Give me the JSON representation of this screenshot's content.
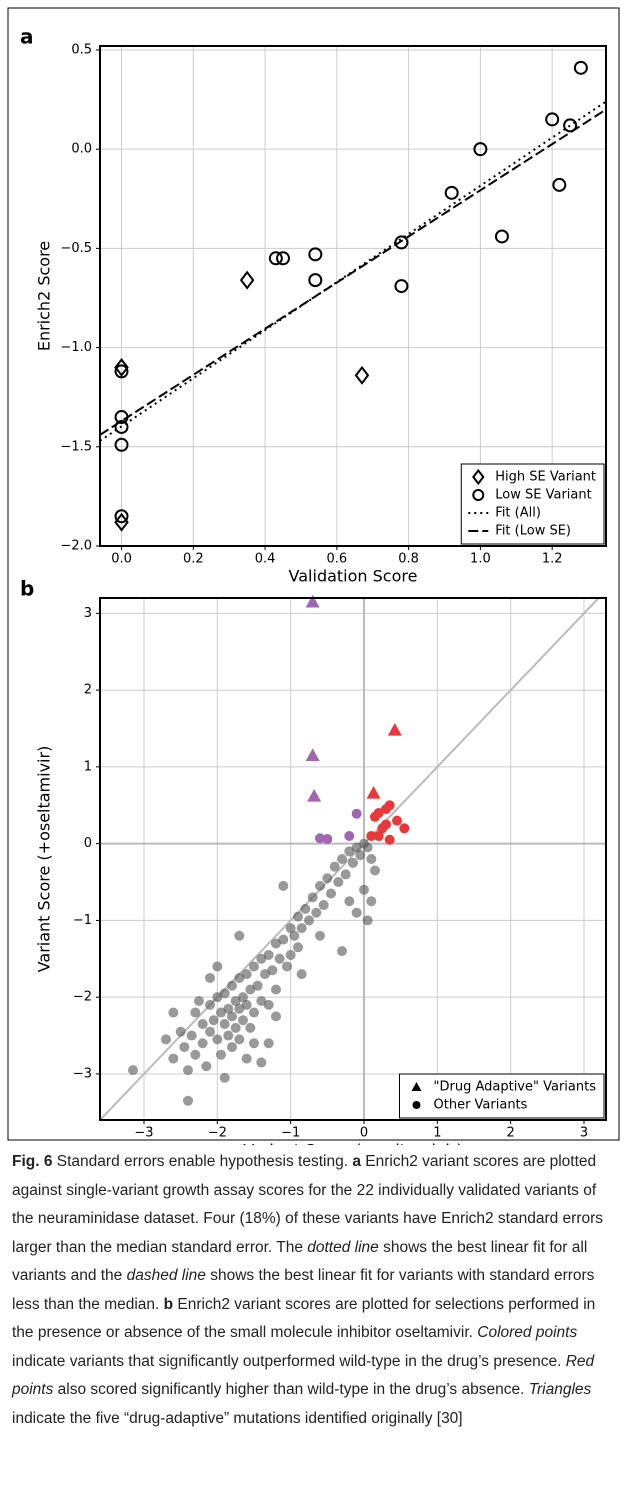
{
  "chart_data": [
    {
      "type": "scatter",
      "panel_label": "a",
      "x_label": "Validation Score",
      "y_label": "Enrich2 Score",
      "xlim": [
        -0.06,
        1.35
      ],
      "ylim": [
        -2.0,
        0.52
      ],
      "xticks": [
        {
          "value": 0,
          "label": "0.0"
        },
        0.2,
        0.4,
        0.6,
        0.8,
        {
          "value": 1,
          "label": "1.0"
        },
        1.2
      ],
      "yticks": [
        0.5,
        {
          "value": 0,
          "label": "0.0"
        },
        {
          "value": -0.5,
          "label": "−0.5"
        },
        {
          "value": -1,
          "label": "−1.0"
        },
        {
          "value": -1.5,
          "label": "−1.5"
        },
        {
          "value": -2,
          "label": "−2.0"
        }
      ],
      "grid": true,
      "legend": "lower right",
      "series": [
        {
          "name": "High SE Variant",
          "marker": "diamond",
          "color": "#000",
          "filled": false,
          "x": [
            0,
            0.35,
            0.67,
            0
          ],
          "values": [
            -1.1,
            -0.66,
            -1.14,
            -1.88
          ]
        },
        {
          "name": "Low SE Variant",
          "marker": "circle",
          "color": "#000",
          "filled": false,
          "x": [
            0,
            0,
            0,
            0,
            0,
            0.43,
            0.45,
            0.54,
            0.54,
            0.78,
            0.78,
            0.92,
            1.0,
            1.06,
            1.2,
            1.22,
            1.25,
            1.28
          ],
          "values": [
            -1.12,
            -1.35,
            -1.4,
            -1.49,
            -1.85,
            -0.55,
            -0.55,
            -0.53,
            -0.66,
            -0.47,
            -0.69,
            -0.22,
            0.0,
            -0.44,
            0.15,
            -0.18,
            0.12,
            0.41
          ]
        }
      ],
      "lines": [
        {
          "name": "Fit (All)",
          "dash": "2 4",
          "color": "#000",
          "x": [
            -0.06,
            1.35
          ],
          "values": [
            -1.47,
            0.24
          ]
        },
        {
          "name": "Fit (Low SE)",
          "dash": "10 4",
          "color": "#000",
          "x": [
            -0.06,
            1.35
          ],
          "values": [
            -1.44,
            0.2
          ]
        }
      ]
    },
    {
      "type": "scatter",
      "panel_label": "b",
      "x_label": "Variant Score (-oseltamivir)",
      "y_label": "Variant Score (+oseltamivir)",
      "xlim": [
        -3.6,
        3.3
      ],
      "ylim": [
        -3.6,
        3.2
      ],
      "xticks": [
        {
          "value": -3,
          "label": "−3"
        },
        {
          "value": -2,
          "label": "−2"
        },
        {
          "value": -1,
          "label": "−1"
        },
        0,
        1,
        2,
        3
      ],
      "yticks": [
        3,
        2,
        1,
        0,
        {
          "value": -1,
          "label": "−1"
        },
        {
          "value": -2,
          "label": "−2"
        },
        {
          "value": -3,
          "label": "−3"
        }
      ],
      "grid": true,
      "zero_lines": true,
      "diagonal": true,
      "legend": "lower right",
      "series": [
        {
          "name": "\"Drug Adaptive\" Variants",
          "marker": "triangle",
          "color": "#000",
          "filled": true,
          "point_colors": [
            "#a066b0",
            "#a066b0",
            "#a066b0",
            "#e8383b",
            "#e8383b"
          ],
          "x": [
            -0.7,
            -0.7,
            -0.68,
            0.42,
            0.13
          ],
          "values": [
            3.15,
            1.15,
            0.62,
            1.48,
            0.66
          ]
        },
        {
          "name": "Other Variants",
          "marker": "circle",
          "color": "#555",
          "filled": true,
          "opacity": 0.6,
          "x": [
            -3.15,
            -2.7,
            -2.6,
            -2.5,
            -2.45,
            -2.4,
            -2.35,
            -2.3,
            -2.3,
            -2.25,
            -2.2,
            -2.2,
            -2.15,
            -2.1,
            -2.1,
            -2.05,
            -2.0,
            -2.0,
            -1.95,
            -1.95,
            -1.9,
            -1.9,
            -1.85,
            -1.85,
            -1.8,
            -1.8,
            -1.8,
            -1.75,
            -1.75,
            -1.7,
            -1.7,
            -1.7,
            -1.65,
            -1.65,
            -1.6,
            -1.6,
            -1.55,
            -1.55,
            -1.5,
            -1.5,
            -1.45,
            -1.4,
            -1.4,
            -1.35,
            -1.3,
            -1.3,
            -1.25,
            -1.2,
            -1.2,
            -1.15,
            -1.1,
            -1.05,
            -1.0,
            -1.0,
            -0.95,
            -0.9,
            -0.9,
            -0.85,
            -0.8,
            -0.75,
            -0.7,
            -0.65,
            -0.6,
            -0.55,
            -0.5,
            -0.45,
            -0.4,
            -0.35,
            -0.3,
            -0.25,
            -0.2,
            -0.15,
            -0.1,
            -0.05,
            0.0,
            0.0,
            0.05,
            0.1,
            0.1,
            0.15,
            -1.3,
            -1.6,
            -2.0,
            -1.9,
            -2.4,
            -1.1,
            -0.85,
            -0.6,
            -0.3,
            -0.1,
            -1.7,
            -1.5,
            -2.1,
            -1.2,
            -0.2,
            0.05,
            -2.6,
            -1.4
          ],
          "values": [
            -2.95,
            -2.55,
            -2.8,
            -2.45,
            -2.65,
            -3.35,
            -2.5,
            -2.2,
            -2.75,
            -2.05,
            -2.35,
            -2.6,
            -2.9,
            -2.1,
            -2.45,
            -2.3,
            -2.0,
            -2.55,
            -2.2,
            -2.75,
            -1.95,
            -2.35,
            -2.15,
            -2.5,
            -1.85,
            -2.25,
            -2.65,
            -2.05,
            -2.4,
            -1.75,
            -2.15,
            -2.55,
            -2.0,
            -2.3,
            -1.7,
            -2.1,
            -1.9,
            -2.4,
            -1.6,
            -2.2,
            -1.85,
            -1.5,
            -2.05,
            -1.7,
            -1.45,
            -2.1,
            -1.65,
            -1.3,
            -1.9,
            -1.5,
            -1.25,
            -1.6,
            -1.1,
            -1.45,
            -1.2,
            -0.95,
            -1.35,
            -1.1,
            -0.85,
            -1.0,
            -0.7,
            -0.9,
            -0.55,
            -0.8,
            -0.45,
            -0.65,
            -0.3,
            -0.5,
            -0.2,
            -0.4,
            -0.1,
            -0.25,
            -0.05,
            -0.15,
            0.0,
            -0.6,
            -0.05,
            -0.2,
            -0.75,
            -0.35,
            -2.6,
            -2.8,
            -1.6,
            -3.05,
            -2.95,
            -0.55,
            -1.7,
            -1.2,
            -1.4,
            -0.9,
            -1.2,
            -2.6,
            -1.75,
            -2.25,
            -0.75,
            -1.0,
            -2.2,
            -2.85
          ]
        },
        {
          "marker": "circle",
          "color": "#a066b0",
          "filled": true,
          "x": [
            -0.5,
            -0.1,
            -0.2,
            -0.6
          ],
          "values": [
            0.06,
            0.39,
            0.1,
            0.07
          ]
        },
        {
          "marker": "circle",
          "color": "#e8383b",
          "filled": true,
          "x": [
            0.15,
            0.2,
            0.3,
            0.35,
            0.25,
            0.3,
            0.45,
            0.1,
            0.2,
            0.55,
            0.35
          ],
          "values": [
            0.35,
            0.4,
            0.45,
            0.5,
            0.2,
            0.25,
            0.3,
            0.1,
            0.1,
            0.2,
            0.05
          ]
        }
      ],
      "lines": []
    }
  ],
  "caption": {
    "segments": [
      {
        "text": "Fig. 6",
        "style": "bold"
      },
      {
        "text": " Standard errors enable hypothesis testing. ",
        "style": "normal"
      },
      {
        "text": "a",
        "style": "bold"
      },
      {
        "text": " Enrich2 variant scores are plotted against single-variant growth assay scores for the 22 individually validated variants of the neuraminidase dataset. Four (18%) of these variants have Enrich2 standard errors larger than the median standard error. The ",
        "style": "normal"
      },
      {
        "text": "dotted line",
        "style": "italic"
      },
      {
        "text": " shows the best linear fit for all variants and the ",
        "style": "normal"
      },
      {
        "text": "dashed line",
        "style": "italic"
      },
      {
        "text": " shows the best linear fit for variants with standard errors less than the median. ",
        "style": "normal"
      },
      {
        "text": "b",
        "style": "bold"
      },
      {
        "text": " Enrich2 variant scores are plotted for selections performed in the presence or absence of the small molecule inhibitor oseltamivir. ",
        "style": "normal"
      },
      {
        "text": "Colored points",
        "style": "italic"
      },
      {
        "text": " indicate variants that significantly outperformed wild-type in the drug’s presence. ",
        "style": "normal"
      },
      {
        "text": "Red points",
        "style": "italic"
      },
      {
        "text": " also scored significantly higher than wild-type in the drug’s absence. ",
        "style": "normal"
      },
      {
        "text": "Triangles",
        "style": "italic"
      },
      {
        "text": " indicate the five “drug-adaptive” mutations identified originally [30]",
        "style": "normal"
      }
    ]
  }
}
